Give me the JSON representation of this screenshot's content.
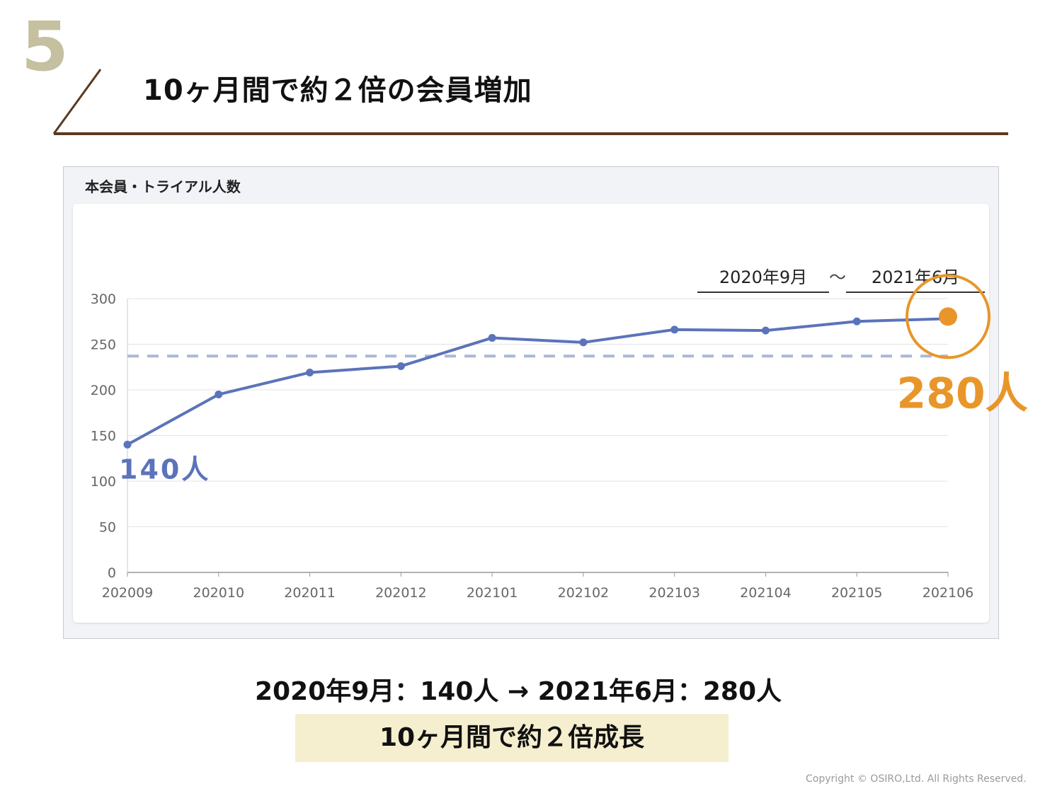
{
  "slide": {
    "number": "5",
    "title": "10ヶ月間で約２倍の会員増加",
    "colors": {
      "accent_line": "#5a3a22",
      "slide_number": "#c4c0a0"
    }
  },
  "panel": {
    "title": "本会員・トライアル人数",
    "date_from": "2020年9月",
    "date_separator": "～",
    "date_to": "2021年6月"
  },
  "chart_data": {
    "type": "line",
    "categories": [
      "202009",
      "202010",
      "202011",
      "202012",
      "202101",
      "202102",
      "202103",
      "202104",
      "202105",
      "202106"
    ],
    "series": [
      {
        "values": [
          140,
          195,
          219,
          226,
          257,
          252,
          266,
          265,
          275,
          278
        ],
        "color": "#5b73bb"
      }
    ],
    "reference_line": {
      "value": 237,
      "style": "dashed",
      "color": "#aab7d8"
    },
    "yticks": [
      "0",
      "50",
      "100",
      "150",
      "200",
      "250",
      "300"
    ],
    "ylim": [
      0,
      300
    ],
    "grid": true,
    "annotations": {
      "start_label": "140人",
      "start_color": "#5b73bb",
      "end_label": "280人",
      "end_color": "#e8962a"
    }
  },
  "summary": {
    "line": "2020年9月：140人 → 2021年6月：280人",
    "highlight": "10ヶ月間で約２倍成長",
    "highlight_bg": "#f6efcf"
  },
  "footer": {
    "copyright": "Copyright © OSIRO,Ltd. All Rights Reserved."
  }
}
